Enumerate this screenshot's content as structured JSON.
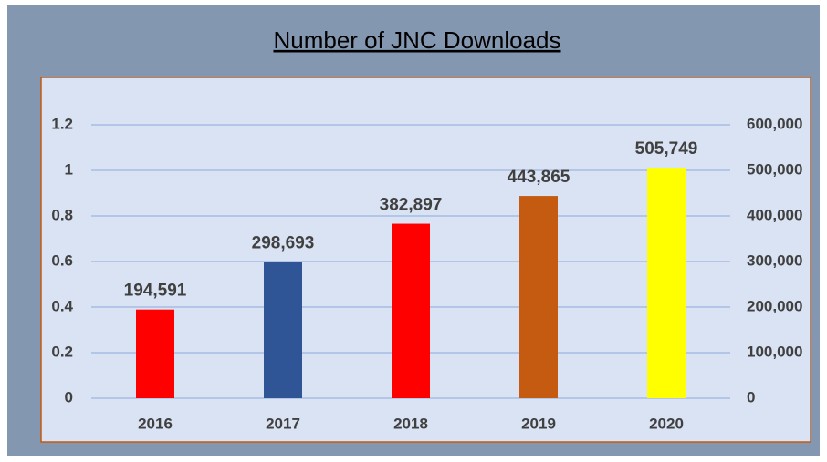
{
  "chart_data": {
    "type": "bar",
    "title": "Number of JNC Downloads",
    "categories": [
      "2016",
      "2017",
      "2018",
      "2019",
      "2020"
    ],
    "values": [
      194591,
      298693,
      382897,
      443865,
      505749
    ],
    "value_labels": [
      "194,591",
      "298,693",
      "382,897",
      "443,865",
      "505,749"
    ],
    "colors": [
      "#ff0000",
      "#2f5597",
      "#ff0000",
      "#c55a11",
      "#ffff00"
    ],
    "axis": "y2",
    "ylim": [
      0,
      1.2
    ],
    "yticks": [
      0,
      0.2,
      0.4,
      0.6,
      0.8,
      1,
      1.2
    ],
    "y2lim": [
      0,
      600000
    ],
    "y2ticks": [
      0,
      {
        "value": 100000,
        "label": "100,000"
      },
      {
        "value": 200000,
        "label": "200,000"
      },
      {
        "value": 300000,
        "label": "300,000"
      },
      {
        "value": 400000,
        "label": "400,000"
      },
      {
        "value": 500000,
        "label": "500,000"
      },
      {
        "value": 600000,
        "label": "600,000"
      }
    ],
    "grid": true
  }
}
